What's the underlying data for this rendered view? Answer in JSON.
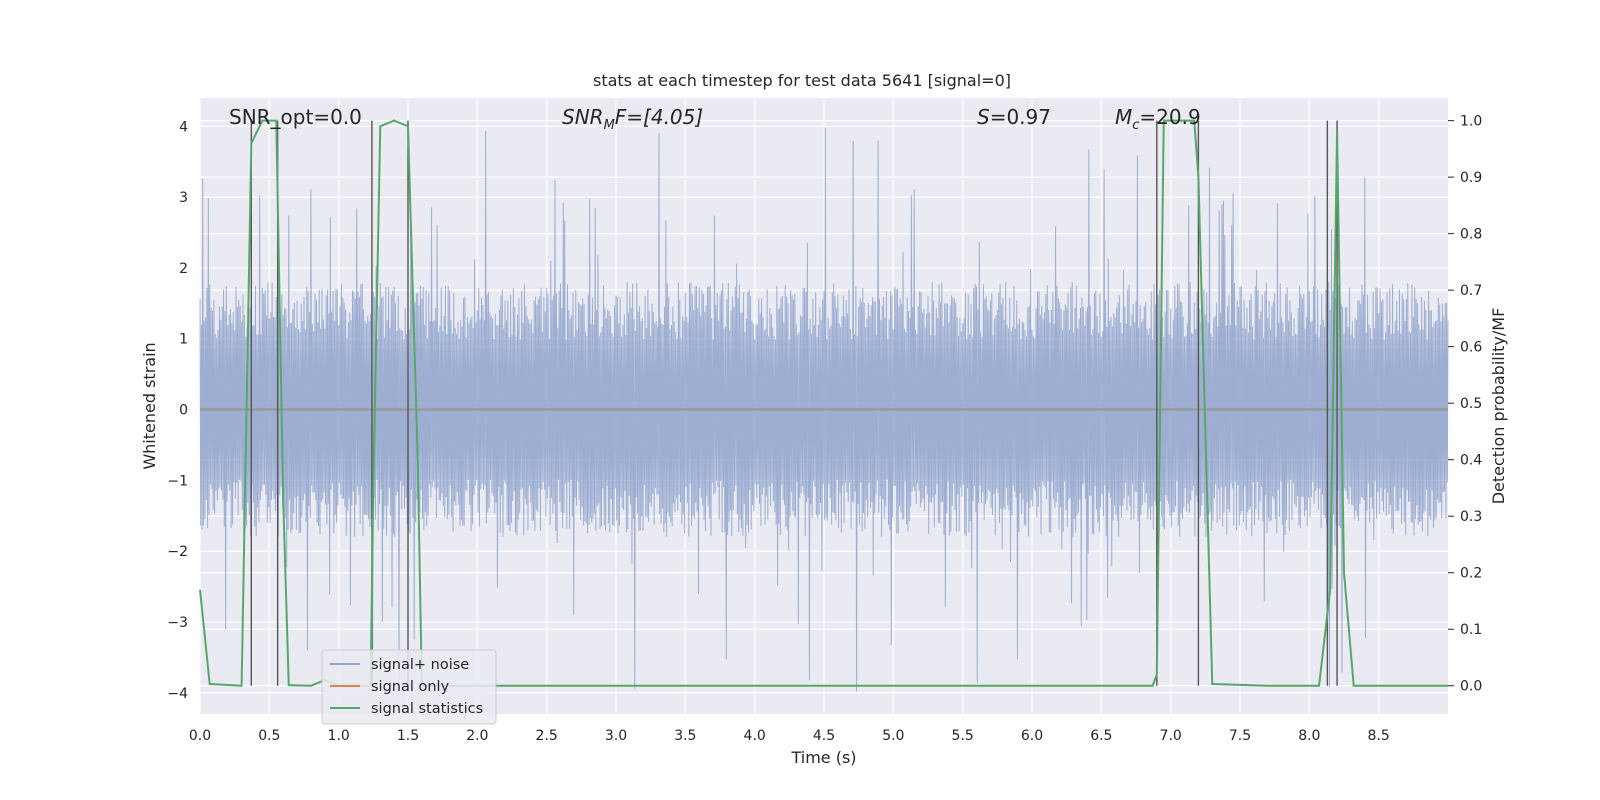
{
  "chart_data": {
    "type": "line",
    "title": "stats at each timestep for test data 5641 [signal=0]",
    "xlabel": "Time (s)",
    "ylabel": "Whitened strain",
    "ylabel_right": "Detection probability/MF",
    "xlim": [
      0.0,
      9.0
    ],
    "ylim": [
      -4.3,
      4.4
    ],
    "ylim_right": [
      -0.05,
      1.04
    ],
    "x_ticks": [
      "0.0",
      "0.5",
      "1.0",
      "1.5",
      "2.0",
      "2.5",
      "3.0",
      "3.5",
      "4.0",
      "4.5",
      "5.0",
      "5.5",
      "6.0",
      "6.5",
      "7.0",
      "7.5",
      "8.0",
      "8.5"
    ],
    "y_ticks": [
      "4",
      "3",
      "2",
      "1",
      "0",
      "−1",
      "−2",
      "−3",
      "−4"
    ],
    "y_ticks_right": [
      "1.0",
      "0.9",
      "0.8",
      "0.7",
      "0.6",
      "0.5",
      "0.4",
      "0.3",
      "0.2",
      "0.1",
      "0.0"
    ],
    "grid": true,
    "legend_position": "lower-left",
    "annotations": {
      "snr_opt": "SNR_opt=0.0",
      "snr_mf_label": "SNR",
      "snr_mf_sub": "M",
      "snr_mf_rest": "F=[4.05]",
      "s_label": "S",
      "s_rest": "=0.97",
      "mc_label": "M",
      "mc_sub": "c",
      "mc_rest": "=20.9"
    },
    "series": [
      {
        "name": "signal+ noise",
        "color": "#8fa3cc",
        "description_kind": "noise",
        "envelope_typical": 1.8,
        "envelope_peak": 4.0
      },
      {
        "name": "signal only",
        "color": "#dd8452",
        "x": [
          0.0,
          9.0
        ],
        "y": [
          0.0,
          0.0
        ]
      },
      {
        "name": "signal statistics",
        "color": "#55a868",
        "axis": "right",
        "x": [
          0.0,
          0.07,
          0.3,
          0.37,
          0.45,
          0.55,
          0.6,
          0.64,
          0.8,
          0.9,
          1.0,
          1.23,
          1.25,
          1.3,
          1.4,
          1.5,
          1.57,
          1.6,
          2.0,
          6.87,
          6.9,
          6.95,
          7.17,
          7.2,
          7.3,
          7.7,
          8.07,
          8.15,
          8.2,
          8.25,
          8.32,
          9.0
        ],
        "y": [
          0.17,
          0.003,
          0.0,
          0.96,
          1.0,
          1.0,
          0.33,
          0.001,
          0.0,
          0.01,
          0.0,
          0.0,
          0.35,
          0.99,
          1.0,
          0.99,
          0.4,
          0.0,
          0.0,
          0.0,
          0.02,
          1.0,
          1.0,
          0.9,
          0.003,
          0.0,
          0.0,
          0.17,
          0.98,
          0.2,
          0.0,
          0.0
        ]
      }
    ],
    "vertical_markers_x": [
      0.37,
      0.56,
      1.24,
      1.5,
      6.9,
      7.2,
      8.13,
      8.2
    ]
  }
}
